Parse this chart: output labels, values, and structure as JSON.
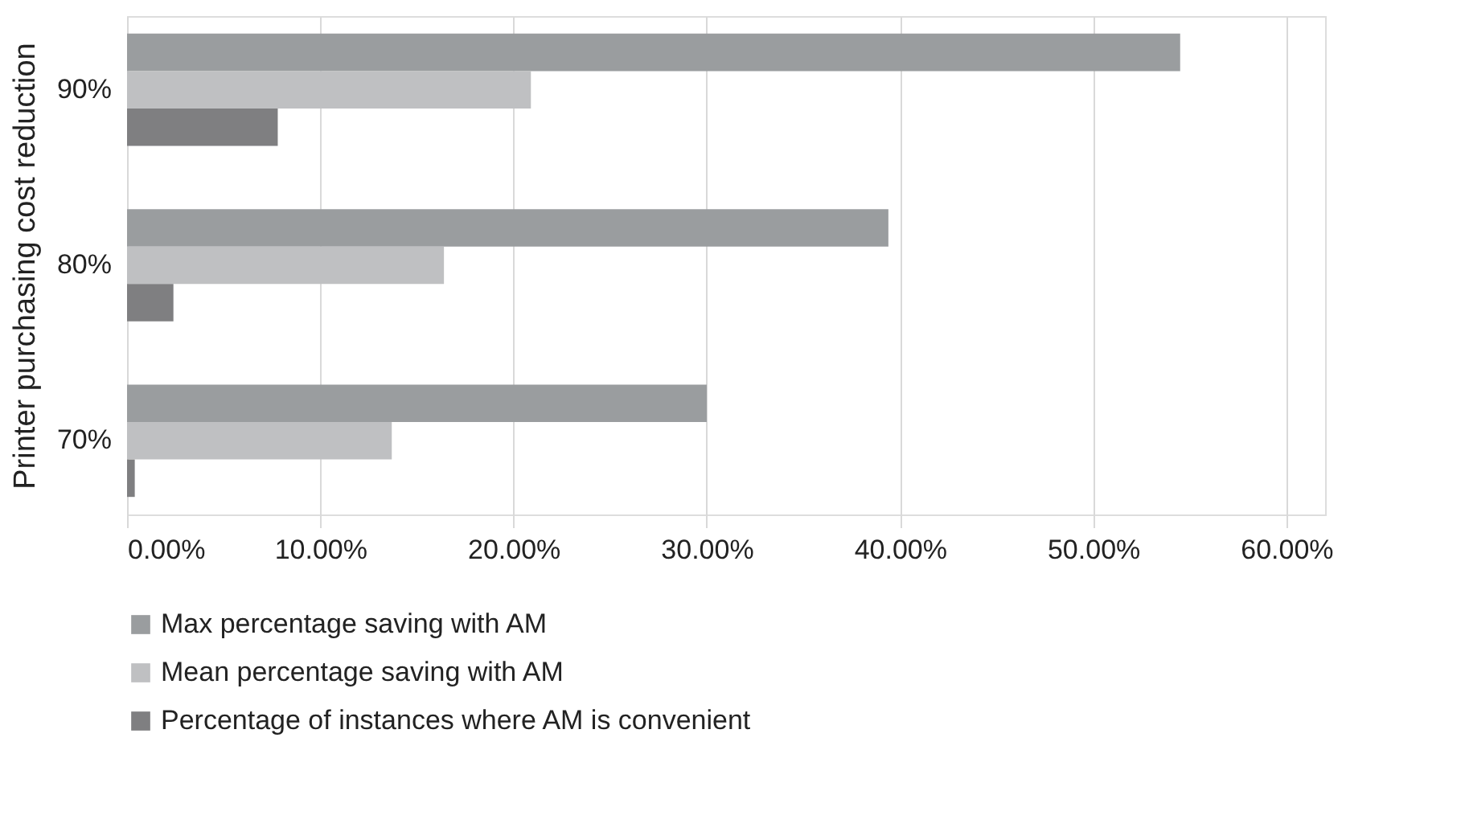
{
  "chart_data": {
    "type": "bar",
    "orientation": "horizontal",
    "ylabel": "Printer purchasing cost reduction",
    "categories": [
      "90%",
      "80%",
      "70%"
    ],
    "series": [
      {
        "name": "Max percentage saving with AM",
        "color": "#9a9d9f",
        "values": [
          54.5,
          39.4,
          30.0
        ]
      },
      {
        "name": "Mean percentage saving with AM",
        "color": "#bfc0c2",
        "values": [
          20.9,
          16.4,
          13.7
        ]
      },
      {
        "name": "Percentage of instances where AM is convenient",
        "color": "#7f7f81",
        "values": [
          7.8,
          2.4,
          0.4
        ]
      }
    ],
    "xlim": [
      0,
      62
    ],
    "xticks": [
      {
        "value": 0,
        "label": "0.00%"
      },
      {
        "value": 10,
        "label": "10.00%"
      },
      {
        "value": 20,
        "label": "20.00%"
      },
      {
        "value": 30,
        "label": "30.00%"
      },
      {
        "value": 40,
        "label": "40.00%"
      },
      {
        "value": 50,
        "label": "50.00%"
      },
      {
        "value": 60,
        "label": "60.00%"
      }
    ],
    "grid": "x",
    "legend": "bottom"
  }
}
